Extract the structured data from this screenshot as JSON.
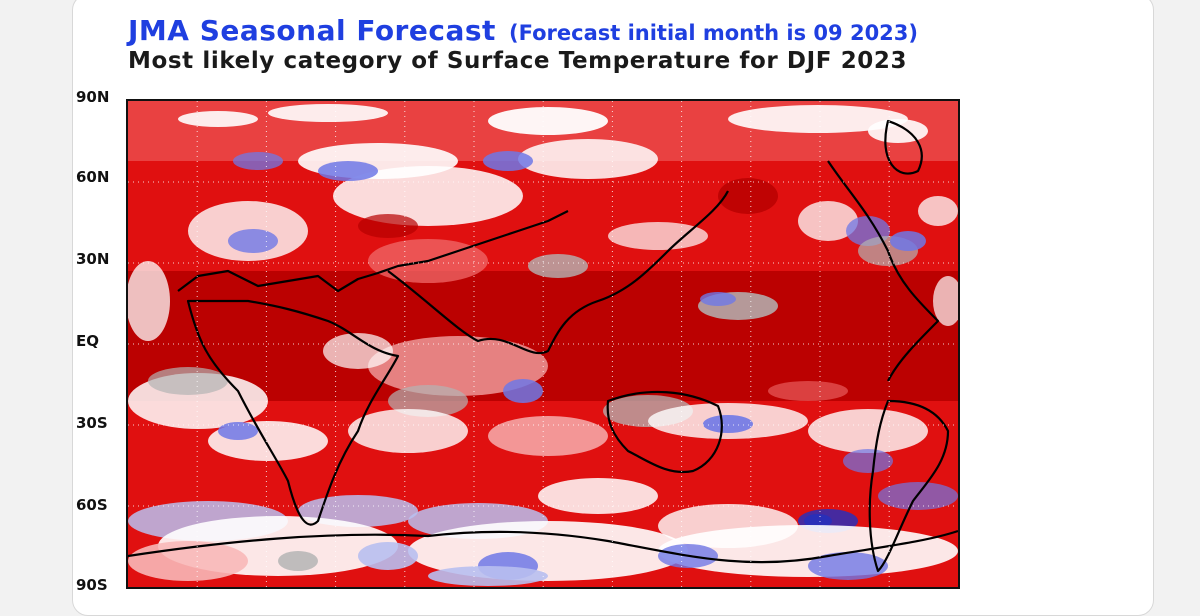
{
  "title": "JMA Seasonal Forecast",
  "title_note": "(Forecast initial month is 09 2023)",
  "subtitle": "Most likely category of Surface Temperature for DJF 2023",
  "map": {
    "latitude_labels": [
      "90N",
      "60N",
      "30N",
      "EQ",
      "30S",
      "60S",
      "90S"
    ],
    "category_colors": {
      "above_strong": "#b70000",
      "above": "#e01010",
      "above_weak": "#f06a6a",
      "above_light": "#f8b8b8",
      "normal": "#b4b4b4",
      "neutral": "#ffffff",
      "below_light": "#b8bff0",
      "below": "#6f78e6",
      "below_strong": "#2a2fb8"
    },
    "coastline_color": "#000000"
  }
}
